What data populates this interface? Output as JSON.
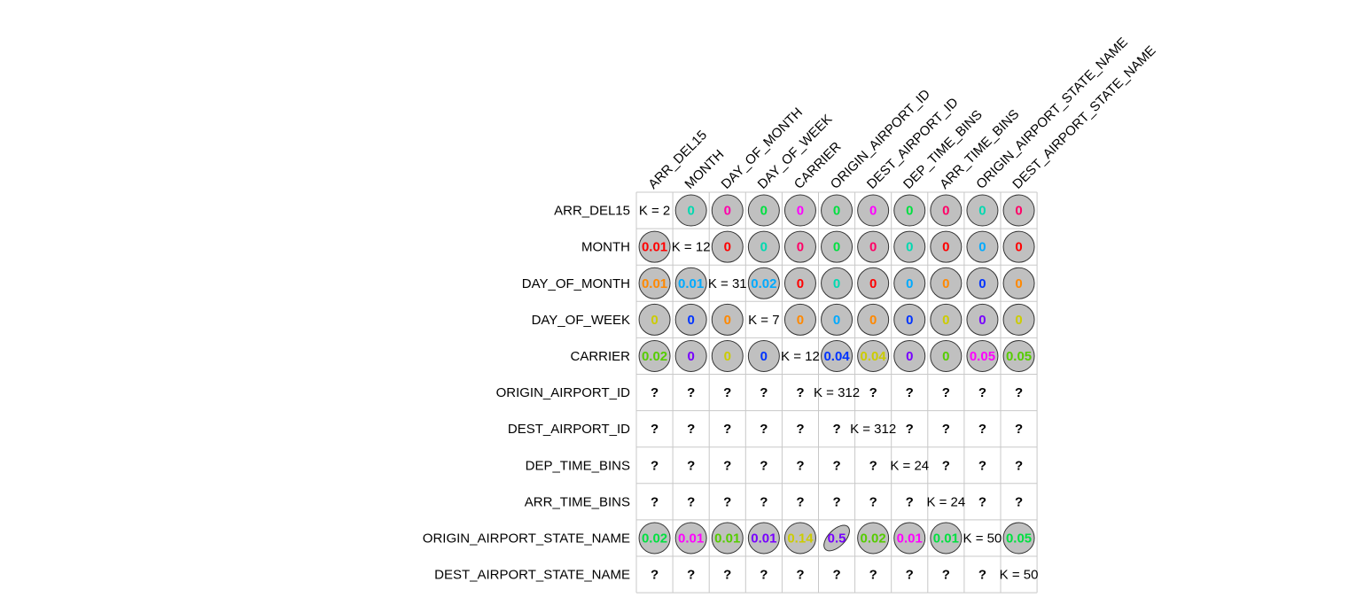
{
  "chart_data": {
    "type": "heatmap",
    "labels": [
      "ARR_DEL15",
      "MONTH",
      "DAY_OF_MONTH",
      "DAY_OF_WEEK",
      "CARRIER",
      "ORIGIN_AIRPORT_ID",
      "DEST_AIRPORT_ID",
      "DEP_TIME_BINS",
      "ARR_TIME_BINS",
      "ORIGIN_AIRPORT_STATE_NAME",
      "DEST_AIRPORT_STATE_NAME"
    ],
    "cells": [
      [
        "K = 2",
        "0",
        "0",
        "0",
        "0",
        "0",
        "0",
        "0",
        "0",
        "0",
        "0"
      ],
      [
        "0.01",
        "K = 12",
        "0",
        "0",
        "0",
        "0",
        "0",
        "0",
        "0",
        "0",
        "0"
      ],
      [
        "0.01",
        "0.01",
        "K = 31",
        "0.02",
        "0",
        "0",
        "0",
        "0",
        "0",
        "0",
        "0"
      ],
      [
        "0",
        "0",
        "0",
        "K = 7",
        "0",
        "0",
        "0",
        "0",
        "0",
        "0",
        "0"
      ],
      [
        "0.02",
        "0",
        "0",
        "0",
        "K = 12",
        "0.04",
        "0.04",
        "0",
        "0",
        "0.05",
        "0.05"
      ],
      [
        "?",
        "?",
        "?",
        "?",
        "?",
        "K = 312",
        "?",
        "?",
        "?",
        "?",
        "?"
      ],
      [
        "?",
        "?",
        "?",
        "?",
        "?",
        "?",
        "K = 312",
        "?",
        "?",
        "?",
        "?"
      ],
      [
        "?",
        "?",
        "?",
        "?",
        "?",
        "?",
        "?",
        "K = 24",
        "?",
        "?",
        "?"
      ],
      [
        "?",
        "?",
        "?",
        "?",
        "?",
        "?",
        "?",
        "?",
        "K = 24",
        "?",
        "?"
      ],
      [
        "0.02",
        "0.01",
        "0.01",
        "0.01",
        "0.14",
        "0.5",
        "0.02",
        "0.01",
        "0.01",
        "K = 50",
        "0.05"
      ],
      [
        "?",
        "?",
        "?",
        "?",
        "?",
        "?",
        "?",
        "?",
        "?",
        "?",
        "K = 50"
      ]
    ],
    "text_colors": [
      [
        "",
        "#00d9b0",
        "#ff00aa",
        "#00e040",
        "#ff00ff",
        "#00e040",
        "#ff00ff",
        "#00e040",
        "#ff0066",
        "#00d9b0",
        "#ff0066"
      ],
      [
        "#ff0000",
        "",
        "#ff0000",
        "#00d9b0",
        "#ff0066",
        "#00e040",
        "#ff0066",
        "#00d9b0",
        "#ff0000",
        "#00aaff",
        "#ff0000"
      ],
      [
        "#ff8800",
        "#00aaff",
        "",
        "#00aaff",
        "#ff0000",
        "#00d9b0",
        "#ff0000",
        "#00aaff",
        "#ff8800",
        "#0033ff",
        "#ff8800"
      ],
      [
        "#cccc00",
        "#0033ff",
        "#ff8800",
        "",
        "#ff8800",
        "#00aaff",
        "#ff8800",
        "#0033ff",
        "#cccc00",
        "#7700ff",
        "#cccc00"
      ],
      [
        "#55cc00",
        "#7700ff",
        "#cccc00",
        "#0033ff",
        "",
        "#0033ff",
        "#cccc00",
        "#7700ff",
        "#55cc00",
        "#ff00ff",
        "#55cc00"
      ],
      [
        "",
        "",
        "",
        "",
        "",
        "",
        "",
        "",
        "",
        "",
        ""
      ],
      [
        "",
        "",
        "",
        "",
        "",
        "",
        "",
        "",
        "",
        "",
        ""
      ],
      [
        "",
        "",
        "",
        "",
        "",
        "",
        "",
        "",
        "",
        "",
        ""
      ],
      [
        "",
        "",
        "",
        "",
        "",
        "",
        "",
        "",
        "",
        "",
        ""
      ],
      [
        "#00e040",
        "#ff00ff",
        "#55cc00",
        "#7700ff",
        "#cccc00",
        "#7700ff",
        "#55cc00",
        "#ff00ff",
        "#00e040",
        "",
        "#00e040"
      ],
      [
        "",
        "",
        "",
        "",
        "",
        "",
        "",
        "",
        "",
        "",
        ""
      ]
    ],
    "circle_fill": "#c0c0c0",
    "grid_color": "#c8c8c8"
  }
}
